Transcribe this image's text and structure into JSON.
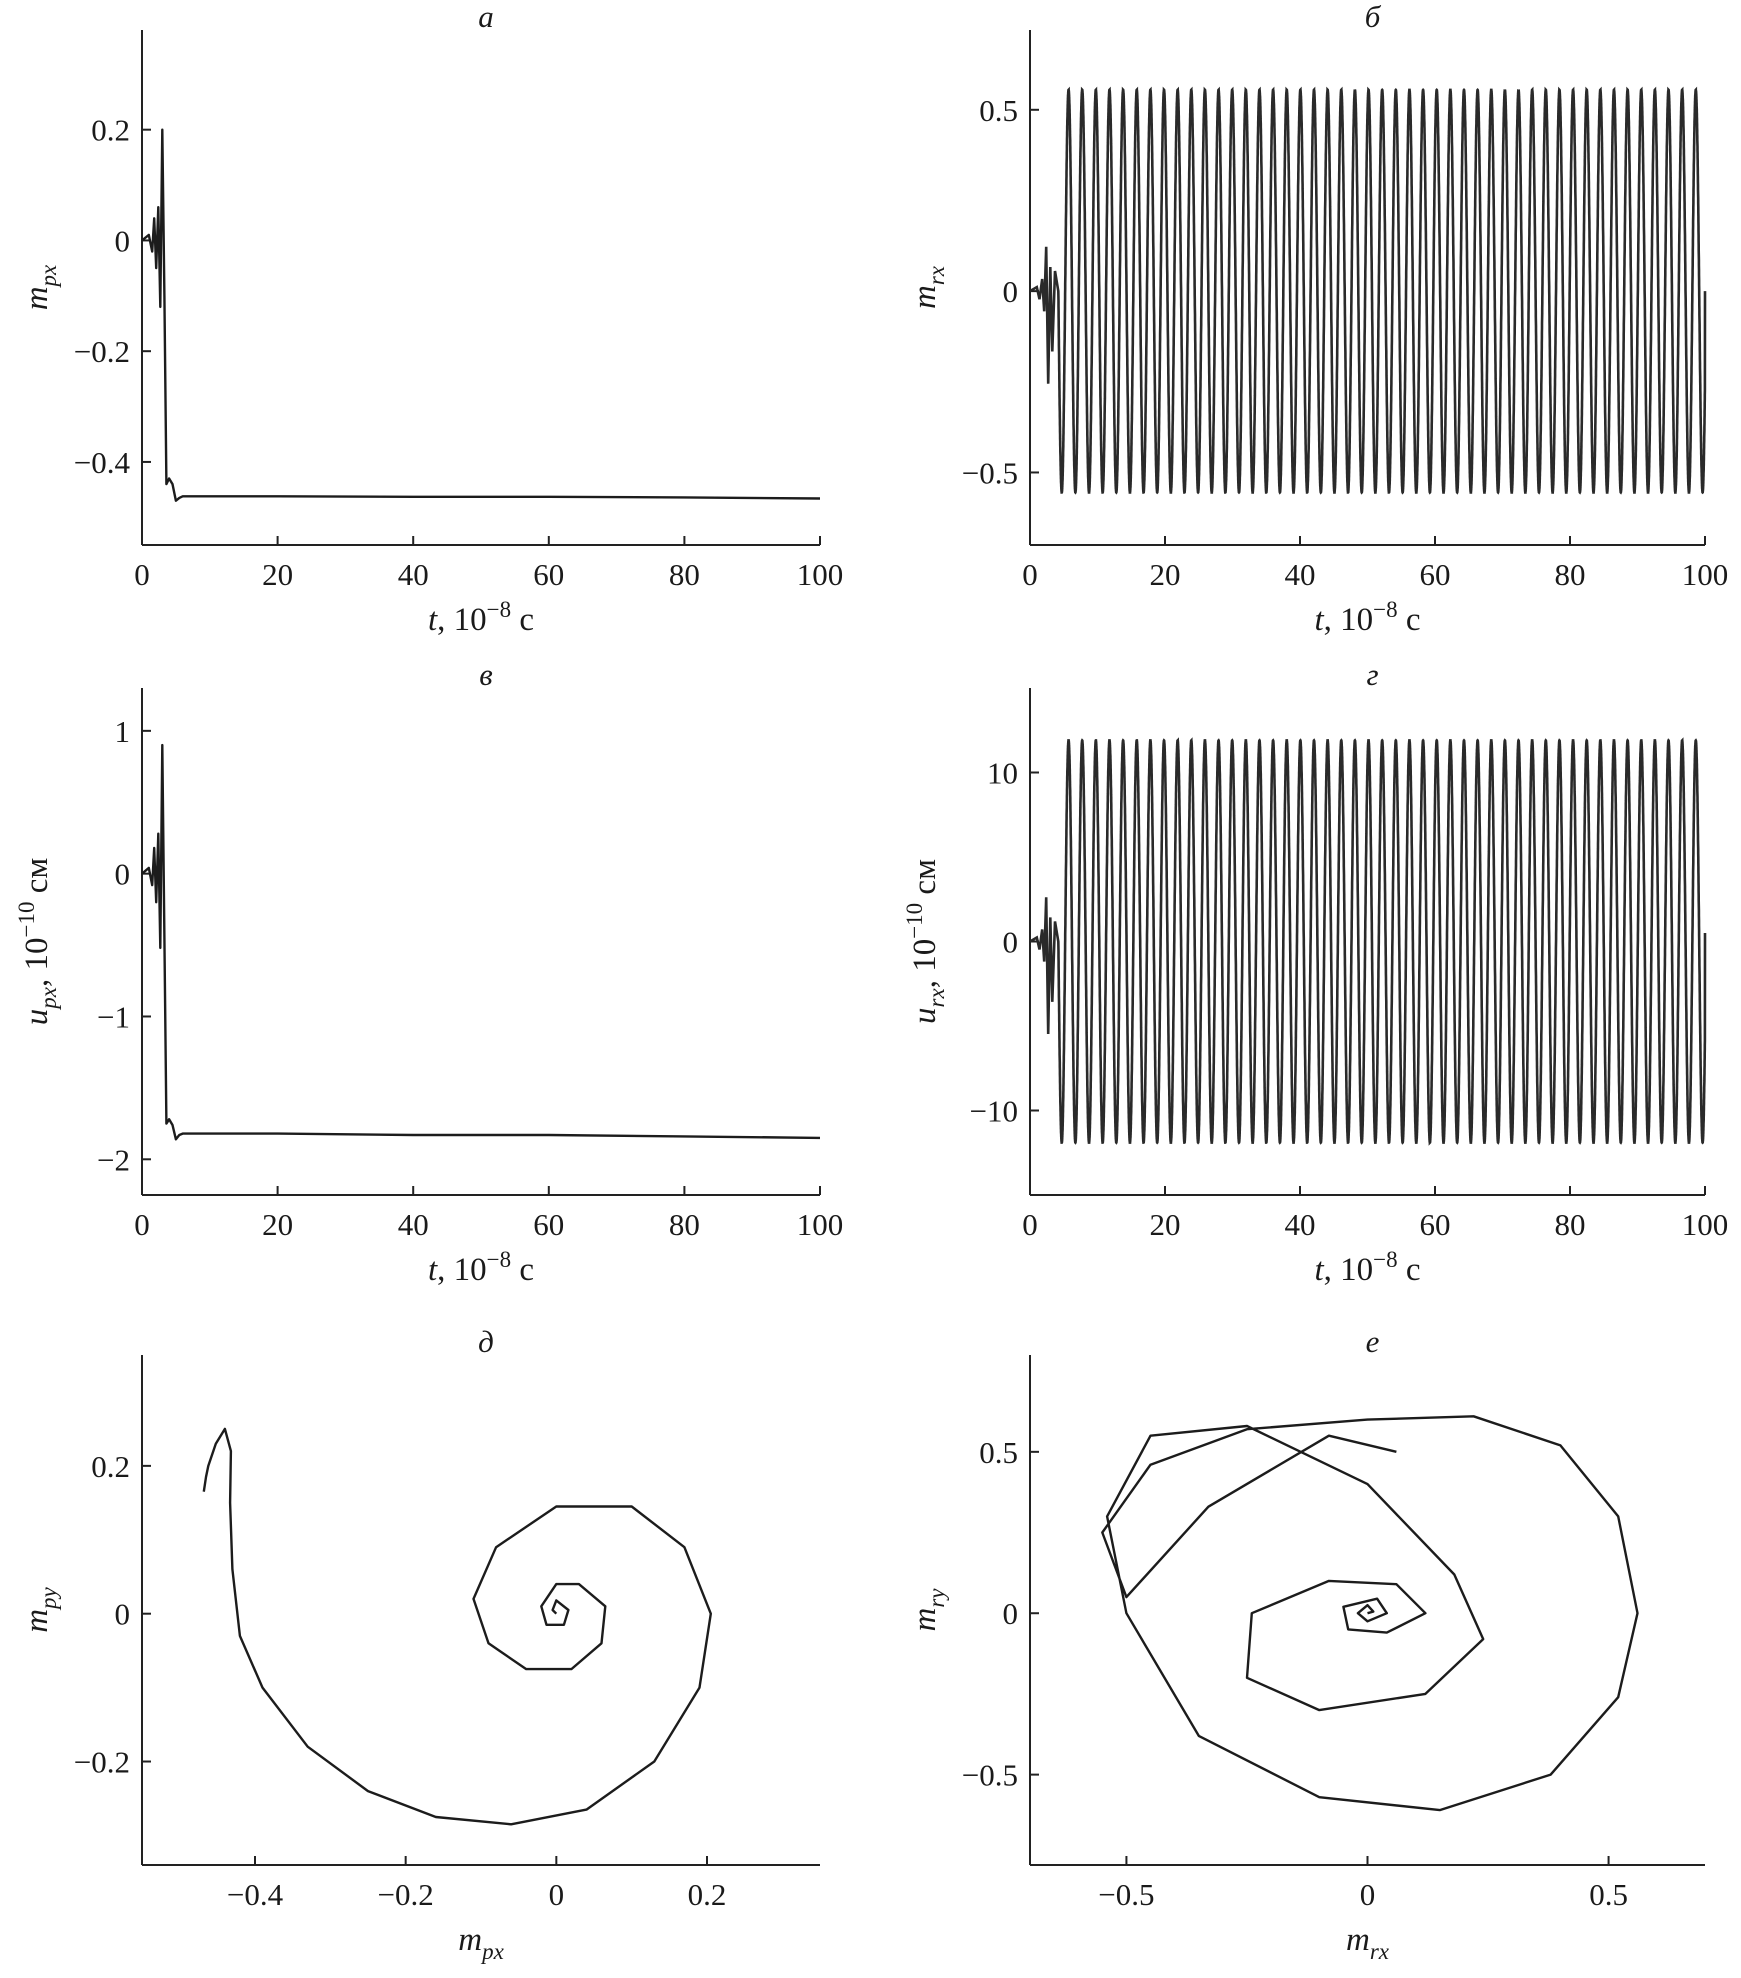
{
  "chart_data": [
    {
      "id": "a",
      "type": "line",
      "panel_label": "а",
      "xlabel": {
        "var": "t",
        "unit": ", 10",
        "exp": "−8",
        "tail": " с"
      },
      "ylabel": {
        "var": "m",
        "sub": "px",
        "unit": ""
      },
      "xlim": [
        0,
        100
      ],
      "ylim": [
        -0.55,
        0.38
      ],
      "xticks": [
        0,
        20,
        40,
        60,
        80,
        100
      ],
      "xtick_labels": [
        "0",
        "20",
        "40",
        "60",
        "80",
        "100"
      ],
      "yticks": [
        0.2,
        0,
        -0.2,
        -0.4
      ],
      "ytick_labels": [
        "0.2",
        "0",
        "−0.2",
        "−0.4"
      ],
      "series": [
        {
          "x": [
            0,
            1,
            1.5,
            1.8,
            2.1,
            2.4,
            2.7,
            3.0,
            3.3,
            3.6,
            4.0,
            4.5,
            5.0,
            5.5,
            6.0,
            7.0,
            10,
            20,
            40,
            60,
            80,
            100
          ],
          "y": [
            0,
            0.01,
            -0.02,
            0.04,
            -0.05,
            0.06,
            -0.12,
            0.2,
            -0.1,
            -0.44,
            -0.43,
            -0.44,
            -0.47,
            -0.465,
            -0.462,
            -0.462,
            -0.462,
            -0.462,
            -0.463,
            -0.463,
            -0.464,
            -0.466
          ]
        }
      ]
    },
    {
      "id": "b",
      "type": "line",
      "panel_label": "б",
      "xlabel": {
        "var": "t",
        "unit": ", 10",
        "exp": "−8",
        "tail": " с"
      },
      "ylabel": {
        "var": "m",
        "sub": "rx",
        "unit": ""
      },
      "xlim": [
        0,
        100
      ],
      "ylim": [
        -0.7,
        0.72
      ],
      "xticks": [
        0,
        20,
        40,
        60,
        80,
        100
      ],
      "xtick_labels": [
        "0",
        "20",
        "40",
        "60",
        "80",
        "100"
      ],
      "yticks": [
        0.5,
        0,
        -0.5
      ],
      "ytick_labels": [
        "0.5",
        "0",
        "−0.5"
      ],
      "oscillation": {
        "start": 4.2,
        "end": 100,
        "period": 2.02,
        "amplitude": 0.555,
        "end_value": 0
      }
    },
    {
      "id": "c",
      "type": "line",
      "panel_label": "в",
      "xlabel": {
        "var": "t",
        "unit": ", 10",
        "exp": "−8",
        "tail": " с"
      },
      "ylabel": {
        "var": "u",
        "sub": "px",
        "unit": ", 10",
        "exp": "−10",
        "tail": " см"
      },
      "xlim": [
        0,
        100
      ],
      "ylim": [
        -2.25,
        1.3
      ],
      "xticks": [
        0,
        20,
        40,
        60,
        80,
        100
      ],
      "xtick_labels": [
        "0",
        "20",
        "40",
        "60",
        "80",
        "100"
      ],
      "yticks": [
        1,
        0,
        -1,
        -2
      ],
      "ytick_labels": [
        "1",
        "0",
        "−1",
        "−2"
      ],
      "series": [
        {
          "x": [
            0,
            1,
            1.5,
            1.8,
            2.1,
            2.4,
            2.7,
            3.0,
            3.3,
            3.6,
            4.0,
            4.5,
            5.0,
            5.5,
            6.0,
            7.0,
            10,
            20,
            40,
            60,
            80,
            100
          ],
          "y": [
            0,
            0.04,
            -0.08,
            0.18,
            -0.2,
            0.28,
            -0.52,
            0.9,
            -0.45,
            -1.75,
            -1.72,
            -1.76,
            -1.86,
            -1.83,
            -1.82,
            -1.82,
            -1.82,
            -1.82,
            -1.83,
            -1.83,
            -1.84,
            -1.85
          ]
        }
      ]
    },
    {
      "id": "d",
      "type": "line",
      "panel_label": "г",
      "xlabel": {
        "var": "t",
        "unit": ", 10",
        "exp": "−8",
        "tail": " с"
      },
      "ylabel": {
        "var": "u",
        "sub": "rx",
        "unit": ", 10",
        "exp": "−10",
        "tail": " см"
      },
      "xlim": [
        0,
        100
      ],
      "ylim": [
        -15,
        15
      ],
      "xticks": [
        0,
        20,
        40,
        60,
        80,
        100
      ],
      "xtick_labels": [
        "0",
        "20",
        "40",
        "60",
        "80",
        "100"
      ],
      "yticks": [
        10,
        0,
        -10
      ],
      "ytick_labels": [
        "10",
        "0",
        "−10"
      ],
      "oscillation": {
        "start": 4.2,
        "end": 100,
        "period": 2.02,
        "amplitude": 11.9,
        "end_value": 0.5
      }
    },
    {
      "id": "e",
      "type": "line",
      "panel_label": "д",
      "xlabel": {
        "var": "m",
        "sub": "px",
        "unit": ""
      },
      "ylabel": {
        "var": "m",
        "sub": "py",
        "unit": ""
      },
      "xlim": [
        -0.55,
        0.35
      ],
      "ylim": [
        -0.34,
        0.35
      ],
      "xticks": [
        -0.4,
        -0.2,
        0,
        0.2
      ],
      "xtick_labels": [
        "−0.4",
        "−0.2",
        "0",
        "0.2"
      ],
      "yticks": [
        0.2,
        0,
        -0.2
      ],
      "ytick_labels": [
        "0.2",
        "0",
        "−0.2"
      ],
      "series": [
        {
          "x": [
            -0.468,
            -0.465,
            -0.462,
            -0.452,
            -0.44,
            -0.432,
            -0.433,
            -0.43,
            -0.42,
            -0.39,
            -0.33,
            -0.25,
            -0.16,
            -0.06,
            0.04,
            0.13,
            0.19,
            0.205,
            0.17,
            0.1,
            0.0,
            -0.08,
            -0.11,
            -0.09,
            -0.04,
            0.02,
            0.06,
            0.065,
            0.03,
            0.0,
            -0.02,
            -0.013,
            0.01,
            0.016,
            0.0,
            -0.005,
            0.0
          ],
          "y": [
            0.165,
            0.185,
            0.2,
            0.23,
            0.25,
            0.22,
            0.15,
            0.06,
            -0.03,
            -0.1,
            -0.18,
            -0.24,
            -0.275,
            -0.285,
            -0.265,
            -0.2,
            -0.1,
            0.0,
            0.09,
            0.145,
            0.145,
            0.09,
            0.02,
            -0.04,
            -0.075,
            -0.075,
            -0.04,
            0.01,
            0.04,
            0.04,
            0.01,
            -0.015,
            -0.015,
            0.005,
            0.018,
            0.005,
            0.0
          ]
        }
      ]
    },
    {
      "id": "f",
      "type": "line",
      "panel_label": "е",
      "xlabel": {
        "var": "m",
        "sub": "rx",
        "unit": ""
      },
      "ylabel": {
        "var": "m",
        "sub": "ry",
        "unit": ""
      },
      "xlim": [
        -0.7,
        0.7
      ],
      "ylim": [
        -0.78,
        0.8
      ],
      "xticks": [
        -0.5,
        0,
        0.5
      ],
      "xtick_labels": [
        "−0.5",
        "0",
        "0.5"
      ],
      "yticks": [
        0.5,
        0,
        -0.5
      ],
      "ytick_labels": [
        "0.5",
        "0",
        "−0.5"
      ],
      "series": [
        {
          "x": [
            0.0,
            0.012,
            0.0,
            -0.02,
            0.0,
            0.04,
            0.02,
            -0.05,
            -0.04,
            0.04,
            0.12,
            0.06,
            -0.08,
            -0.24,
            -0.25,
            -0.1,
            0.12,
            0.24,
            0.18,
            0.0,
            -0.25,
            -0.45,
            -0.54,
            -0.5,
            -0.35,
            -0.1,
            0.15,
            0.38,
            0.52,
            0.56,
            0.52,
            0.4,
            0.22,
            0.0,
            -0.25,
            -0.45,
            -0.55,
            -0.5,
            -0.33,
            -0.08,
            0.06
          ],
          "y": [
            0.0,
            0.005,
            0.025,
            0.0,
            -0.025,
            0.0,
            0.045,
            0.02,
            -0.05,
            -0.06,
            0.0,
            0.09,
            0.1,
            0.0,
            -0.2,
            -0.3,
            -0.25,
            -0.08,
            0.12,
            0.4,
            0.58,
            0.55,
            0.3,
            0.0,
            -0.38,
            -0.57,
            -0.61,
            -0.5,
            -0.26,
            0.0,
            0.3,
            0.52,
            0.61,
            0.6,
            0.57,
            0.46,
            0.25,
            0.05,
            0.33,
            0.55,
            0.5
          ]
        }
      ]
    }
  ]
}
